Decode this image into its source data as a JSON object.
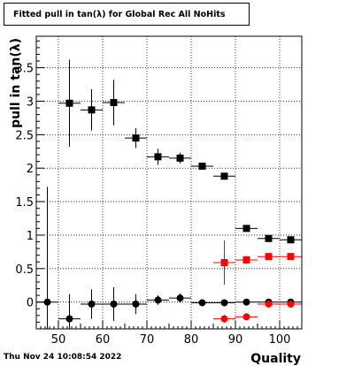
{
  "chart_data": {
    "type": "scatter",
    "title": "Fitted pull in tan(λ) for Global Rec All NoHits",
    "xlabel": "Quality",
    "ylabel": "pull in tan(λ)",
    "xlim": [
      45,
      105
    ],
    "ylim": [
      -0.4,
      3.97
    ],
    "xticks": [
      50,
      60,
      70,
      80,
      90,
      100
    ],
    "yticks": [
      0,
      0.5,
      1,
      1.5,
      2,
      2.5,
      3,
      3.5
    ],
    "grid": true,
    "series": [
      {
        "marker": "square",
        "color": "#000000",
        "points": [
          {
            "x": 52.5,
            "y": 2.97,
            "yerr": 0.65,
            "xerr": 2.5
          },
          {
            "x": 57.5,
            "y": 2.87,
            "yerr": 0.31,
            "xerr": 2.5
          },
          {
            "x": 62.5,
            "y": 2.98,
            "yerr": 0.34,
            "xerr": 2.5
          },
          {
            "x": 67.5,
            "y": 2.45,
            "yerr": 0.15,
            "xerr": 2.5
          },
          {
            "x": 72.5,
            "y": 2.17,
            "yerr": 0.12,
            "xerr": 2.5
          },
          {
            "x": 77.5,
            "y": 2.15,
            "yerr": 0.08,
            "xerr": 2.5
          },
          {
            "x": 82.5,
            "y": 2.03,
            "yerr": 0.04,
            "xerr": 2.5
          },
          {
            "x": 87.5,
            "y": 1.88,
            "yerr": 0.03,
            "xerr": 2.5
          },
          {
            "x": 92.5,
            "y": 1.1,
            "yerr": 0.02,
            "xerr": 2.5
          },
          {
            "x": 97.5,
            "y": 0.95,
            "yerr": 0.02,
            "xerr": 2.5
          },
          {
            "x": 102.5,
            "y": 0.93,
            "yerr": 0.02,
            "xerr": 2.5
          }
        ]
      },
      {
        "marker": "circle",
        "color": "#000000",
        "points": [
          {
            "x": 47.5,
            "y": 0.0,
            "yerr": 1.72,
            "xerr": 2.5
          },
          {
            "x": 52.5,
            "y": -0.25,
            "yerr": 0.37,
            "xerr": 2.5
          },
          {
            "x": 57.5,
            "y": -0.03,
            "yerr": 0.22,
            "xerr": 2.5
          },
          {
            "x": 62.5,
            "y": -0.03,
            "yerr": 0.25,
            "xerr": 2.5
          },
          {
            "x": 67.5,
            "y": -0.03,
            "yerr": 0.15,
            "xerr": 2.5
          },
          {
            "x": 72.5,
            "y": 0.03,
            "yerr": 0.07,
            "xerr": 2.5
          },
          {
            "x": 77.5,
            "y": 0.06,
            "yerr": 0.07,
            "xerr": 2.5
          },
          {
            "x": 82.5,
            "y": -0.01,
            "yerr": 0.04,
            "xerr": 2.5
          },
          {
            "x": 87.5,
            "y": -0.01,
            "yerr": 0.03,
            "xerr": 2.5
          },
          {
            "x": 92.5,
            "y": 0.0,
            "yerr": 0.02,
            "xerr": 2.5
          },
          {
            "x": 97.5,
            "y": 0.0,
            "yerr": 0.02,
            "xerr": 2.5
          },
          {
            "x": 102.5,
            "y": 0.0,
            "yerr": 0.02,
            "xerr": 2.5
          }
        ]
      },
      {
        "marker": "square",
        "color": "#ff0000",
        "points": [
          {
            "x": 87.5,
            "y": 0.59,
            "yerr": 0.33,
            "xerr": 2.5
          },
          {
            "x": 92.5,
            "y": 0.63,
            "yerr": 0.06,
            "xerr": 2.5
          },
          {
            "x": 97.5,
            "y": 0.68,
            "yerr": 0.03,
            "xerr": 2.5
          },
          {
            "x": 102.5,
            "y": 0.68,
            "yerr": 0.02,
            "xerr": 2.5
          }
        ]
      },
      {
        "marker": "circle",
        "color": "#ff0000",
        "points": [
          {
            "x": 87.5,
            "y": -0.25,
            "yerr": 0.06,
            "xerr": 2.5
          },
          {
            "x": 92.5,
            "y": -0.22,
            "yerr": 0.03,
            "xerr": 2.5
          },
          {
            "x": 97.5,
            "y": -0.03,
            "yerr": 0.02,
            "xerr": 2.5
          },
          {
            "x": 102.5,
            "y": -0.03,
            "yerr": 0.02,
            "xerr": 2.5
          }
        ]
      }
    ]
  },
  "timestamp": "Thu Nov 24 10:08:54 2022"
}
